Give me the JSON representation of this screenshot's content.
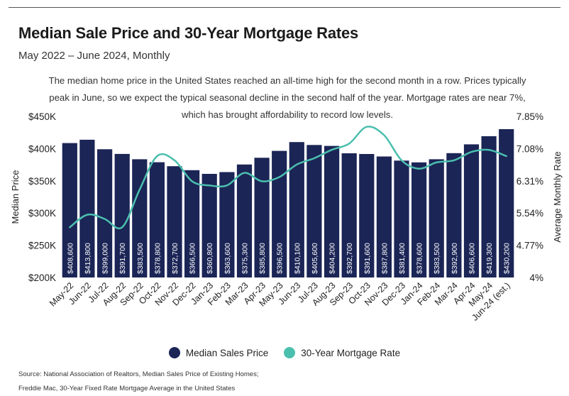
{
  "title": "Median Sale Price and 30-Year Mortgage Rates",
  "subtitle": "May 2022 – June 2024, Monthly",
  "description": [
    "The median home price in the United States reached an all-time high for the second month in a row. Prices typically",
    "peak in June, so we expect the typical seasonal decline in the second half of the year. Mortgage rates are near 7%,",
    "which has brought affordability to record low levels."
  ],
  "colors": {
    "bar": "#1b2556",
    "line": "#4bbfae",
    "bar_label": "#ffffff"
  },
  "legend": {
    "bars": "Median Sales Price",
    "line": "30-Year Mortgage Rate"
  },
  "source": [
    "Source: National Association of Realtors, Median Sales Price of Existing Homes;",
    "Freddie Mac, 30-Year Fixed Rate Mortgage Average in the United States"
  ],
  "chart_data": {
    "type": "bar",
    "categories": [
      "May-22",
      "Jun-22",
      "Jul-22",
      "Aug-22",
      "Sep-22",
      "Oct-22",
      "Nov-22",
      "Dec-22",
      "Jan-23",
      "Feb-23",
      "Mar-23",
      "Apr-23",
      "May-23",
      "Jun-23",
      "Jul-23",
      "Aug-23",
      "Sep-23",
      "Oct-23",
      "Nov-23",
      "Dec-23",
      "Jan-24",
      "Feb-24",
      "Mar-24",
      "Apr-24",
      "May-24",
      "Jun-24 (est.)"
    ],
    "series": [
      {
        "name": "Median Sales Price",
        "type": "bar",
        "axis": "left",
        "values": [
          408600,
          413800,
          399000,
          391700,
          383500,
          378800,
          372700,
          366500,
          360800,
          363600,
          375300,
          385800,
          396500,
          410100,
          405600,
          404200,
          392700,
          391600,
          387800,
          381400,
          378600,
          383500,
          392900,
          406600,
          419300,
          430200
        ],
        "labels": [
          "$408,600",
          "$413,800",
          "$399,000",
          "$391,700",
          "$383,500",
          "$378,800",
          "$372,700",
          "$366,500",
          "$360,800",
          "$363,600",
          "$375,300",
          "$385,800",
          "$396,500",
          "$410,100",
          "$405,600",
          "$404,200",
          "$392,700",
          "$391,600",
          "$387,800",
          "$381,400",
          "$378,600",
          "$383,500",
          "$392,900",
          "$406,600",
          "$419,300",
          "$430,200"
        ]
      },
      {
        "name": "30-Year Mortgage Rate",
        "type": "line",
        "axis": "right",
        "values": [
          5.2,
          5.5,
          5.4,
          5.2,
          6.1,
          6.9,
          6.8,
          6.3,
          6.2,
          6.2,
          6.5,
          6.3,
          6.4,
          6.7,
          6.85,
          7.05,
          7.2,
          7.6,
          7.4,
          6.8,
          6.6,
          6.75,
          6.8,
          7.0,
          7.05,
          6.9
        ]
      }
    ],
    "ylabel": "Median Price",
    "y2label": "Average Monthly Rate",
    "ylim": [
      200000,
      450000
    ],
    "y2lim": [
      4,
      7.85
    ],
    "yticks": [
      "$200K",
      "$250K",
      "$300K",
      "$350K",
      "$400K",
      "$450K"
    ],
    "y2ticks": [
      "4%",
      "4.77%",
      "5.54%",
      "6.31%",
      "7.08%",
      "7.85%"
    ],
    "legend_position": "bottom-center",
    "grid": false
  }
}
